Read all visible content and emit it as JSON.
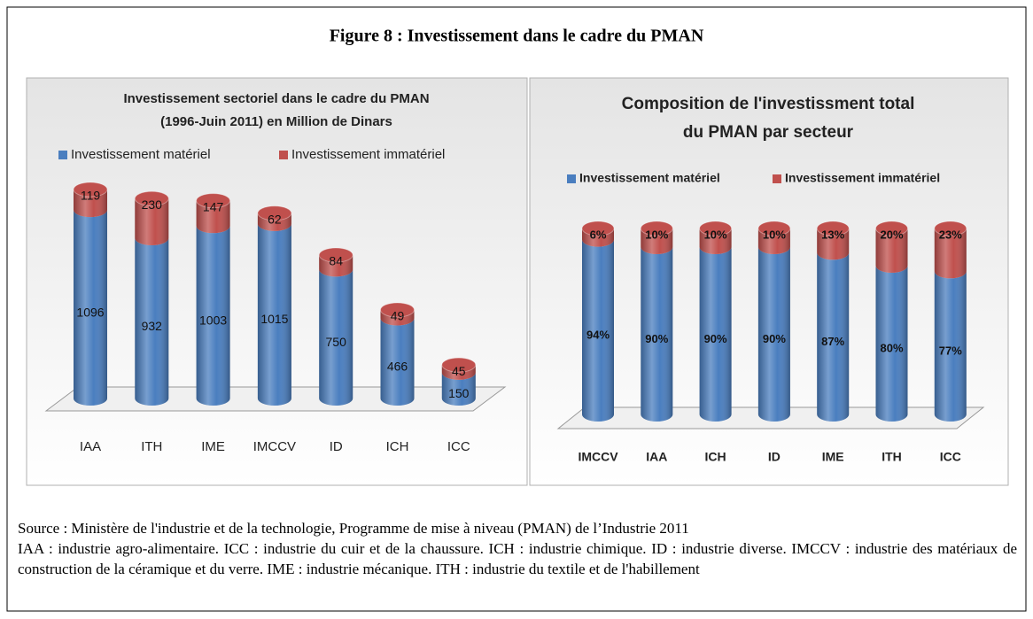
{
  "figure_title": "Figure 8 : Investissement dans le cadre du PMAN",
  "chart_data": [
    {
      "type": "bar",
      "stacked": true,
      "title": [
        "Investissement  sectoriel dans le cadre du PMAN",
        "(1996-Juin 2011) en Million de Dinars"
      ],
      "categories": [
        "IAA",
        "ITH",
        "IME",
        "IMCCV",
        "ID",
        "ICH",
        "ICC"
      ],
      "series": [
        {
          "name": "Investissement matériel",
          "color": "#4a7ebf",
          "values": [
            1096,
            932,
            1003,
            1015,
            750,
            466,
            150
          ]
        },
        {
          "name": "Investissement immatériel",
          "color": "#c0504d",
          "values": [
            119,
            230,
            147,
            62,
            84,
            49,
            45
          ]
        }
      ]
    },
    {
      "type": "bar",
      "stacked": true,
      "title": [
        "Composition de l'investissment total",
        "du PMAN par secteur"
      ],
      "categories": [
        "IMCCV",
        "IAA",
        "ICH",
        "ID",
        "IME",
        "ITH",
        "ICC"
      ],
      "series": [
        {
          "name": "Investissement matériel",
          "color": "#4a7ebf",
          "values": [
            94,
            90,
            90,
            90,
            87,
            80,
            77
          ],
          "value_labels": [
            "94%",
            "90%",
            "90%",
            "90%",
            "87%",
            "80%",
            "77%"
          ]
        },
        {
          "name": "Investissement immatériel",
          "color": "#c0504d",
          "values": [
            6,
            10,
            10,
            10,
            13,
            20,
            23
          ],
          "value_labels": [
            "6%",
            "10%",
            "10%",
            "10%",
            "13%",
            "20%",
            "23%"
          ]
        }
      ]
    }
  ],
  "source": "Source : Ministère de l'industrie et de la technologie,  Programme de mise à niveau (PMAN) de l’Industrie 2011",
  "notes": "IAA : industrie agro-alimentaire. ICC : industrie du cuir et de la chaussure. ICH : industrie chimique. ID : industrie diverse. IMCCV : industrie des matériaux de construction de la céramique et du verre. IME : industrie mécanique. ITH : industrie du textile et de l'habillement"
}
